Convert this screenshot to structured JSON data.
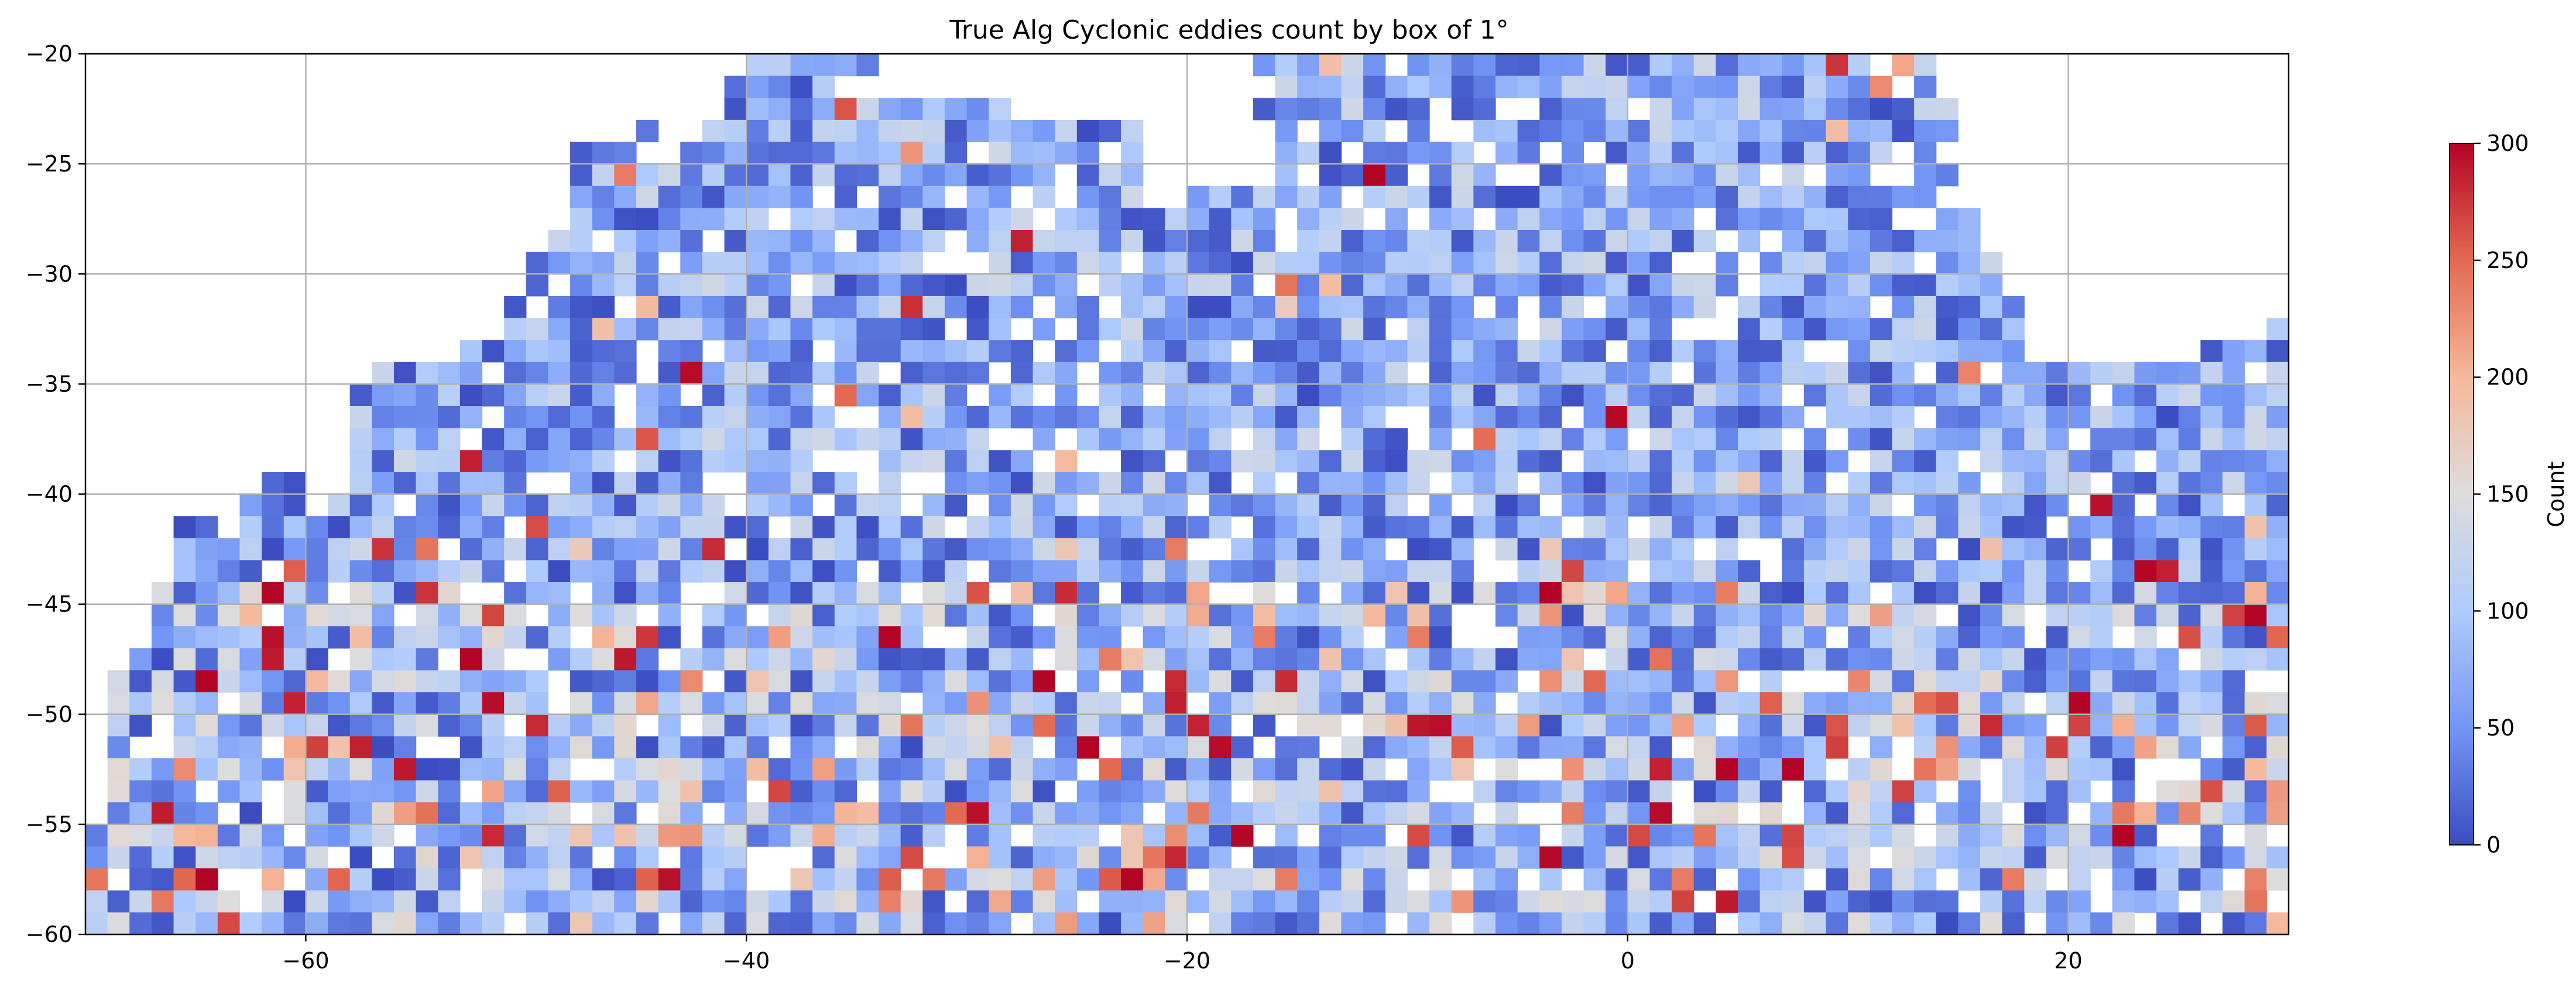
{
  "chart_data": {
    "type": "heatmap",
    "title": "True Alg Cyclonic eddies count by box of 1°",
    "xlabel": "",
    "ylabel": "",
    "xlim": [
      -70,
      30
    ],
    "ylim": [
      -60,
      -20
    ],
    "xticks": [
      -60,
      -40,
      -20,
      0,
      20
    ],
    "yticks": [
      -20,
      -25,
      -30,
      -35,
      -40,
      -45,
      -50,
      -55,
      -60
    ],
    "xtick_labels": [
      "−60",
      "−40",
      "−20",
      "0",
      "20"
    ],
    "ytick_labels": [
      "−20",
      "−25",
      "−30",
      "−35",
      "−40",
      "−45",
      "−50",
      "−55",
      "−60"
    ],
    "grid": true,
    "cell_size_deg": 1,
    "colormap": "coolwarm",
    "colormap_stops": [
      "#3b4cc0",
      "#7396f5",
      "#b0cbfc",
      "#dddcdc",
      "#f6b89b",
      "#e26952",
      "#b40426"
    ],
    "colorbar": {
      "label": "Count",
      "range": [
        0,
        300
      ],
      "ticks": [
        0,
        50,
        100,
        150,
        200,
        250,
        300
      ],
      "tick_labels": [
        "0",
        "50",
        "100",
        "150",
        "200",
        "250",
        "300"
      ]
    },
    "coverage_rows": [
      {
        "lat": -21,
        "segments": [
          [
            -41,
            -34
          ],
          [
            -17,
            14
          ]
        ]
      },
      {
        "lat": -22,
        "segments": [
          [
            -41,
            -36
          ],
          [
            -17,
            14
          ]
        ]
      },
      {
        "lat": -23,
        "segments": [
          [
            -41,
            -28
          ],
          [
            -18,
            15
          ]
        ]
      },
      {
        "lat": -24,
        "segments": [
          [
            -45,
            -22
          ],
          [
            -16,
            15
          ]
        ]
      },
      {
        "lat": -25,
        "segments": [
          [
            -48,
            -22
          ],
          [
            -16,
            14
          ]
        ]
      },
      {
        "lat": -26,
        "segments": [
          [
            -48,
            -22
          ],
          [
            -17,
            15
          ]
        ]
      },
      {
        "lat": -27,
        "segments": [
          [
            -48,
            -22
          ],
          [
            -20,
            15
          ]
        ]
      },
      {
        "lat": -28,
        "segments": [
          [
            -48,
            16
          ]
        ]
      },
      {
        "lat": -29,
        "segments": [
          [
            -49,
            16
          ]
        ]
      },
      {
        "lat": -30,
        "segments": [
          [
            -50,
            17
          ]
        ]
      },
      {
        "lat": -31,
        "segments": [
          [
            -50,
            17
          ]
        ]
      },
      {
        "lat": -32,
        "segments": [
          [
            -51,
            18
          ]
        ]
      },
      {
        "lat": -33,
        "segments": [
          [
            -51,
            18
          ],
          [
            29,
            30
          ]
        ]
      },
      {
        "lat": -34,
        "segments": [
          [
            -53,
            18
          ],
          [
            26,
            30
          ]
        ]
      },
      {
        "lat": -35,
        "segments": [
          [
            -57,
            30
          ]
        ]
      },
      {
        "lat": -36,
        "segments": [
          [
            -58,
            30
          ]
        ]
      },
      {
        "lat": -37,
        "segments": [
          [
            -58,
            30
          ]
        ]
      },
      {
        "lat": -38,
        "segments": [
          [
            -58,
            30
          ]
        ]
      },
      {
        "lat": -39,
        "segments": [
          [
            -58,
            30
          ]
        ]
      },
      {
        "lat": -40,
        "segments": [
          [
            -63,
            -60
          ],
          [
            -58,
            30
          ]
        ]
      },
      {
        "lat": -41,
        "segments": [
          [
            -63,
            -60
          ],
          [
            -59,
            30
          ]
        ]
      },
      {
        "lat": -42,
        "segments": [
          [
            -66,
            30
          ]
        ]
      },
      {
        "lat": -43,
        "segments": [
          [
            -66,
            30
          ]
        ]
      },
      {
        "lat": -44,
        "segments": [
          [
            -66,
            30
          ]
        ]
      },
      {
        "lat": -45,
        "segments": [
          [
            -67,
            30
          ]
        ]
      },
      {
        "lat": -46,
        "segments": [
          [
            -67,
            30
          ]
        ]
      },
      {
        "lat": -47,
        "segments": [
          [
            -67,
            30
          ]
        ]
      },
      {
        "lat": -48,
        "segments": [
          [
            -68,
            30
          ]
        ]
      },
      {
        "lat": -49,
        "segments": [
          [
            -69,
            30
          ]
        ]
      },
      {
        "lat": -50,
        "segments": [
          [
            -69,
            30
          ]
        ]
      },
      {
        "lat": -51,
        "segments": [
          [
            -69,
            30
          ]
        ]
      },
      {
        "lat": -52,
        "segments": [
          [
            -69,
            30
          ]
        ]
      },
      {
        "lat": -53,
        "segments": [
          [
            -69,
            30
          ]
        ]
      },
      {
        "lat": -54,
        "segments": [
          [
            -69,
            30
          ]
        ]
      },
      {
        "lat": -55,
        "segments": [
          [
            -69,
            30
          ]
        ]
      },
      {
        "lat": -56,
        "segments": [
          [
            -70,
            30
          ]
        ]
      },
      {
        "lat": -57,
        "segments": [
          [
            -70,
            30
          ]
        ]
      },
      {
        "lat": -58,
        "segments": [
          [
            -70,
            30
          ]
        ]
      },
      {
        "lat": -59,
        "segments": [
          [
            -70,
            30
          ]
        ]
      },
      {
        "lat": -60,
        "segments": [
          [
            -70,
            30
          ]
        ]
      }
    ],
    "empty_cell_fraction": 0.13,
    "high_count_rows_approx": [
      -45,
      -60
    ],
    "typical_count_range": [
      0,
      150
    ]
  }
}
